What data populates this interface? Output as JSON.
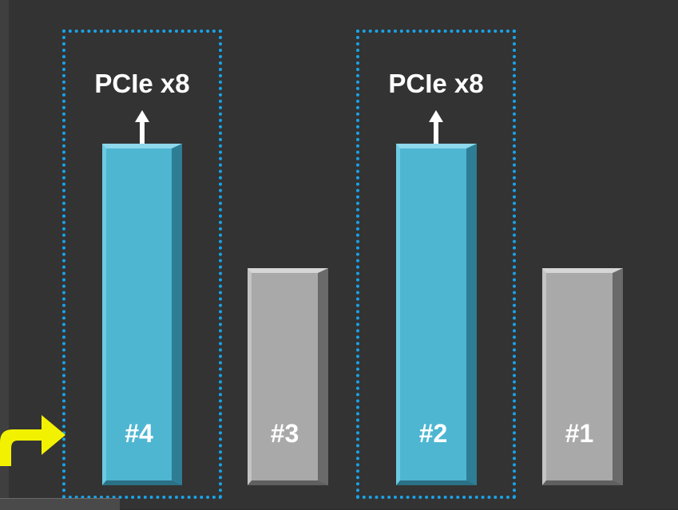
{
  "slots": [
    {
      "id": "#4",
      "color": "blue",
      "bus": "PCIe x8",
      "highlighted": true
    },
    {
      "id": "#3",
      "color": "gray",
      "bus": "",
      "highlighted": false
    },
    {
      "id": "#2",
      "color": "blue",
      "bus": "PCIe x8",
      "highlighted": true
    },
    {
      "id": "#1",
      "color": "gray",
      "bus": "",
      "highlighted": false
    }
  ],
  "colors": {
    "background": "#333333",
    "highlight_border": "#1aa3e8",
    "blue_slot": "#4fb6d2",
    "gray_slot": "#a9a9a9",
    "pointer_arrow": "#f2f200",
    "label_text": "#ffffff"
  },
  "icons": {
    "pointer": "curved-arrow-right-icon",
    "bus_arrow": "arrow-up-icon"
  }
}
